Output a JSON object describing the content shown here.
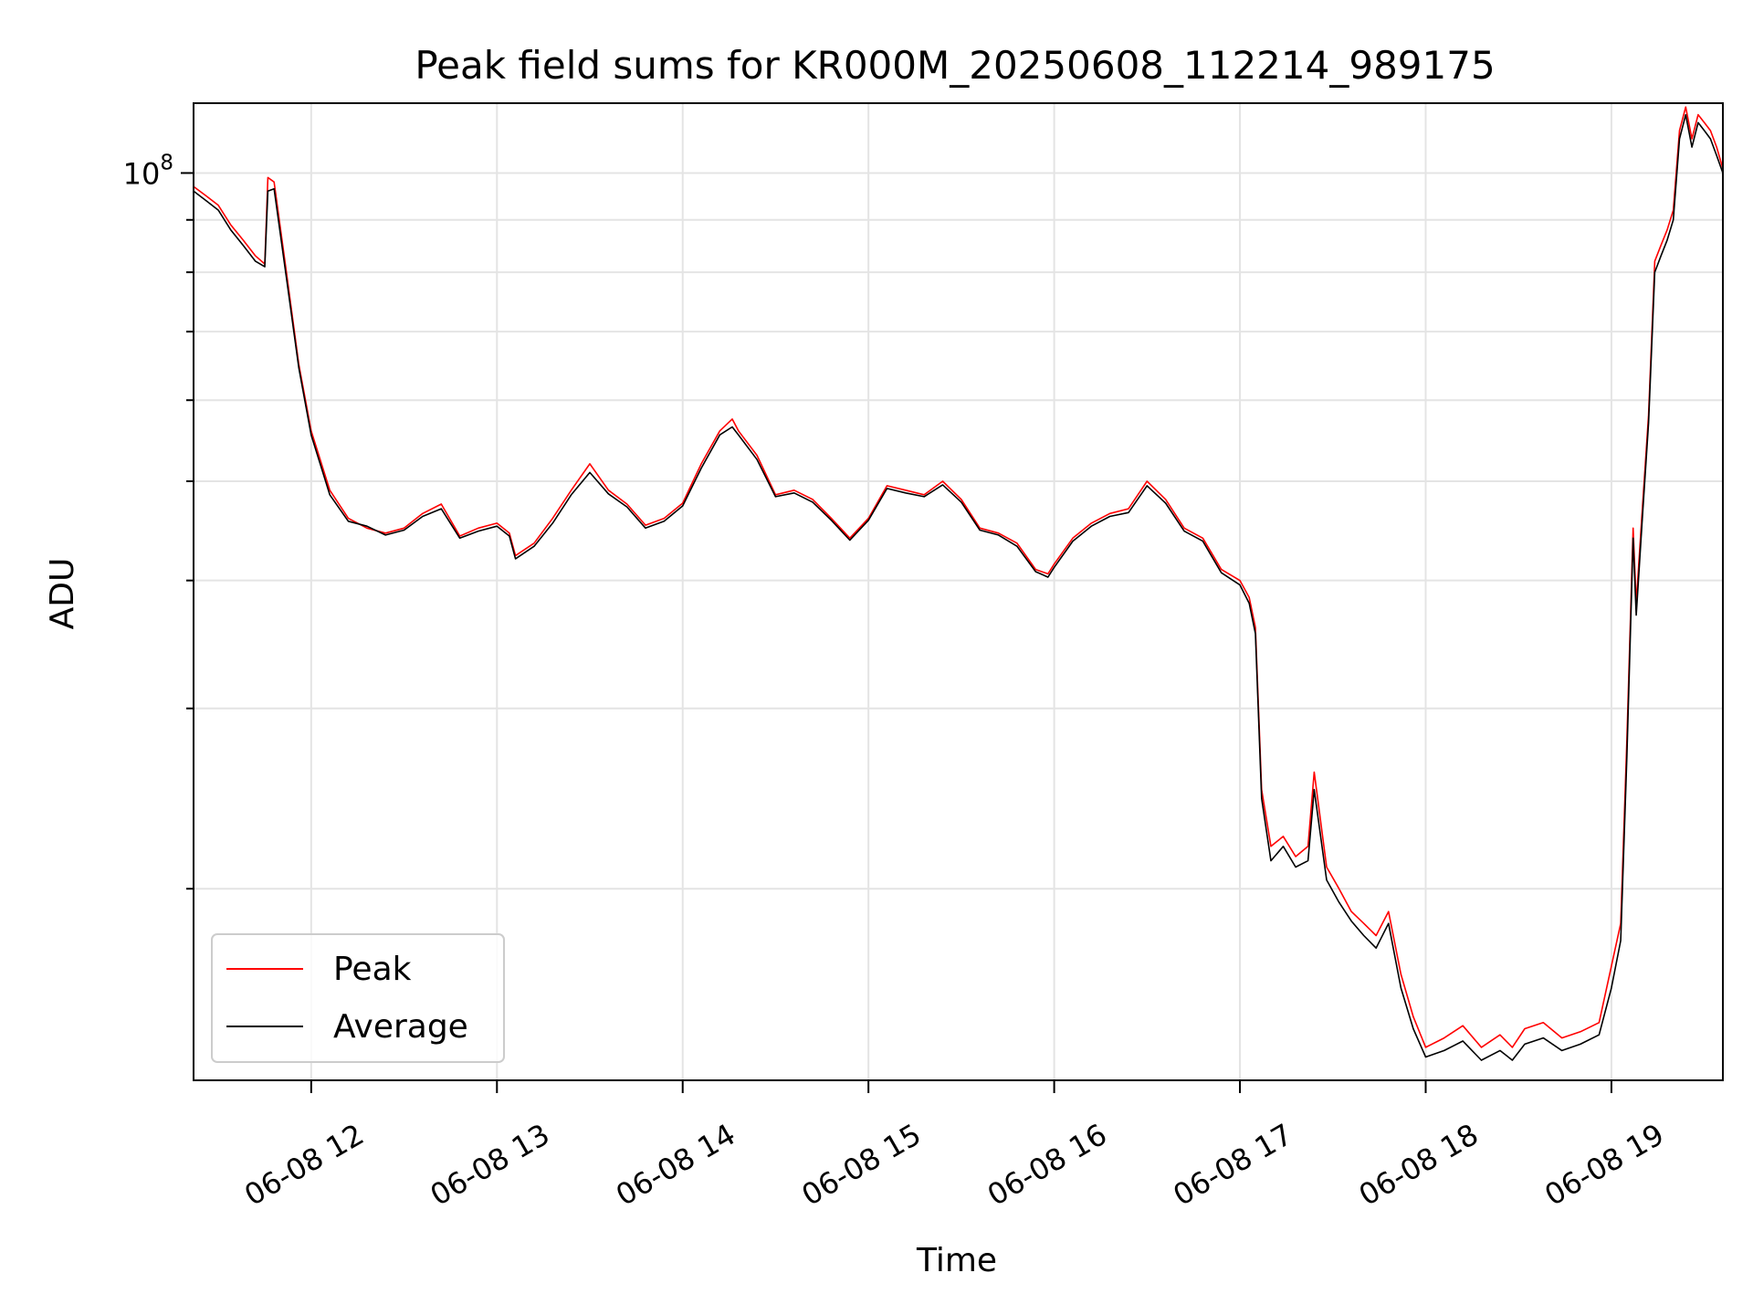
{
  "chart_data": {
    "type": "line",
    "title": "Peak field sums for KR000M_20250608_112214_989175",
    "xlabel": "Time",
    "ylabel": "ADU",
    "x_is_time": true,
    "xlim": [
      "06-08 11:22",
      "06-08 19:36"
    ],
    "y_scale": "log",
    "ylim": [
      13000000,
      117000000
    ],
    "y_major_ticks": [
      {
        "value": 100000000,
        "base": "10",
        "exp": "8"
      }
    ],
    "y_minor_ticks": [
      20000000,
      30000000,
      40000000,
      50000000,
      60000000,
      70000000,
      80000000,
      90000000
    ],
    "x_ticks": [
      {
        "t": "06-08 12:00",
        "label": "06-08 12"
      },
      {
        "t": "06-08 13:00",
        "label": "06-08 13"
      },
      {
        "t": "06-08 14:00",
        "label": "06-08 14"
      },
      {
        "t": "06-08 15:00",
        "label": "06-08 15"
      },
      {
        "t": "06-08 16:00",
        "label": "06-08 16"
      },
      {
        "t": "06-08 17:00",
        "label": "06-08 17"
      },
      {
        "t": "06-08 18:00",
        "label": "06-08 18"
      },
      {
        "t": "06-08 19:00",
        "label": "06-08 19"
      }
    ],
    "grid": true,
    "legend_position": "lower-left",
    "series": [
      {
        "name": "Peak",
        "color": "#ff0000"
      },
      {
        "name": "Average",
        "color": "#000000"
      }
    ],
    "x": [
      "06-08 11:22",
      "06-08 11:26",
      "06-08 11:30",
      "06-08 11:34",
      "06-08 11:38",
      "06-08 11:42",
      "06-08 11:45",
      "06-08 11:46",
      "06-08 11:48",
      "06-08 11:52",
      "06-08 11:56",
      "06-08 12:00",
      "06-08 12:06",
      "06-08 12:12",
      "06-08 12:18",
      "06-08 12:24",
      "06-08 12:30",
      "06-08 12:36",
      "06-08 12:42",
      "06-08 12:48",
      "06-08 12:54",
      "06-08 13:00",
      "06-08 13:04",
      "06-08 13:06",
      "06-08 13:12",
      "06-08 13:18",
      "06-08 13:24",
      "06-08 13:30",
      "06-08 13:36",
      "06-08 13:42",
      "06-08 13:48",
      "06-08 13:54",
      "06-08 14:00",
      "06-08 14:06",
      "06-08 14:12",
      "06-08 14:16",
      "06-08 14:18",
      "06-08 14:24",
      "06-08 14:30",
      "06-08 14:36",
      "06-08 14:42",
      "06-08 14:48",
      "06-08 14:54",
      "06-08 15:00",
      "06-08 15:06",
      "06-08 15:12",
      "06-08 15:18",
      "06-08 15:24",
      "06-08 15:30",
      "06-08 15:36",
      "06-08 15:42",
      "06-08 15:48",
      "06-08 15:54",
      "06-08 15:58",
      "06-08 16:00",
      "06-08 16:06",
      "06-08 16:12",
      "06-08 16:18",
      "06-08 16:24",
      "06-08 16:30",
      "06-08 16:36",
      "06-08 16:42",
      "06-08 16:48",
      "06-08 16:54",
      "06-08 17:00",
      "06-08 17:03",
      "06-08 17:05",
      "06-08 17:07",
      "06-08 17:10",
      "06-08 17:14",
      "06-08 17:18",
      "06-08 17:22",
      "06-08 17:24",
      "06-08 17:28",
      "06-08 17:32",
      "06-08 17:36",
      "06-08 17:40",
      "06-08 17:44",
      "06-08 17:48",
      "06-08 17:52",
      "06-08 17:56",
      "06-08 18:00",
      "06-08 18:06",
      "06-08 18:12",
      "06-08 18:18",
      "06-08 18:24",
      "06-08 18:28",
      "06-08 18:32",
      "06-08 18:38",
      "06-08 18:44",
      "06-08 18:50",
      "06-08 18:56",
      "06-08 19:00",
      "06-08 19:03",
      "06-08 19:05",
      "06-08 19:07",
      "06-08 19:08",
      "06-08 19:10",
      "06-08 19:12",
      "06-08 19:14",
      "06-08 19:16",
      "06-08 19:18",
      "06-08 19:20",
      "06-08 19:22",
      "06-08 19:24",
      "06-08 19:26",
      "06-08 19:28",
      "06-08 19:30",
      "06-08 19:32",
      "06-08 19:34",
      "06-08 19:36"
    ],
    "peak": [
      97000000,
      95000000,
      93000000,
      89000000,
      86000000,
      83000000,
      81500000,
      99000000,
      98000000,
      80000000,
      65000000,
      56000000,
      49000000,
      46000000,
      45000000,
      44500000,
      45000000,
      46500000,
      47500000,
      44200000,
      45000000,
      45500000,
      44500000,
      42300000,
      43500000,
      46000000,
      49000000,
      52000000,
      49000000,
      47500000,
      45300000,
      46000000,
      47600000,
      52000000,
      56000000,
      57500000,
      56000000,
      53000000,
      48500000,
      49000000,
      48000000,
      46000000,
      44000000,
      46000000,
      49500000,
      49000000,
      48500000,
      50000000,
      48000000,
      45000000,
      44500000,
      43500000,
      41000000,
      40600000,
      41500000,
      44000000,
      45500000,
      46500000,
      47000000,
      50000000,
      48000000,
      45000000,
      44000000,
      41000000,
      40000000,
      38500000,
      36000000,
      25000000,
      22000000,
      22500000,
      21500000,
      22000000,
      26000000,
      21000000,
      20000000,
      19000000,
      18500000,
      18000000,
      19000000,
      16500000,
      15000000,
      14000000,
      14300000,
      14700000,
      14000000,
      14400000,
      14000000,
      14600000,
      14800000,
      14300000,
      14500000,
      14800000,
      16800000,
      18500000,
      28000000,
      45000000,
      38000000,
      47000000,
      58000000,
      82000000,
      85000000,
      88000000,
      92000000,
      110000000,
      116000000,
      108000000,
      114000000,
      112000000,
      110000000,
      106000000,
      101000000
    ],
    "average": [
      96000000,
      94000000,
      92000000,
      88000000,
      85000000,
      82000000,
      81000000,
      96000000,
      96500000,
      79000000,
      64500000,
      55500000,
      48500000,
      45700000,
      45200000,
      44300000,
      44800000,
      46200000,
      47000000,
      44000000,
      44700000,
      45200000,
      44200000,
      42000000,
      43200000,
      45500000,
      48500000,
      51000000,
      48600000,
      47200000,
      45000000,
      45700000,
      47300000,
      51500000,
      55500000,
      56500000,
      55500000,
      52500000,
      48300000,
      48700000,
      47700000,
      45800000,
      43800000,
      45800000,
      49200000,
      48700000,
      48300000,
      49600000,
      47700000,
      44800000,
      44300000,
      43200000,
      40800000,
      40300000,
      41200000,
      43700000,
      45200000,
      46200000,
      46600000,
      49500000,
      47600000,
      44700000,
      43700000,
      40700000,
      39600000,
      38000000,
      35500000,
      24500000,
      21300000,
      22000000,
      21000000,
      21300000,
      25000000,
      20400000,
      19400000,
      18600000,
      18000000,
      17500000,
      18500000,
      16000000,
      14600000,
      13700000,
      13900000,
      14200000,
      13600000,
      13900000,
      13600000,
      14100000,
      14300000,
      13900000,
      14100000,
      14400000,
      16000000,
      17800000,
      27000000,
      44000000,
      37000000,
      46000000,
      57000000,
      80000000,
      83000000,
      86000000,
      90000000,
      108000000,
      114000000,
      106000000,
      112000000,
      110000000,
      108000000,
      104000000,
      100000000
    ]
  }
}
